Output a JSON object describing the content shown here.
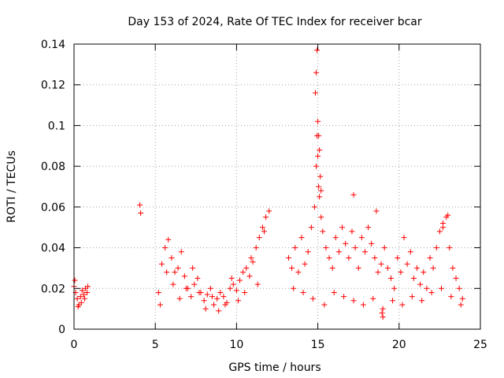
{
  "chart_data": {
    "type": "scatter",
    "title": "Day 153 of 2024, Rate Of TEC Index for receiver bcar",
    "xlabel": "GPS time / hours",
    "ylabel": "ROTI / TECUs",
    "xlim": [
      0,
      25
    ],
    "ylim": [
      0,
      0.14
    ],
    "x_ticks": [
      0,
      5,
      10,
      15,
      20,
      25
    ],
    "x_tick_labels": [
      "0",
      "5",
      "10",
      "15",
      "20",
      "25"
    ],
    "y_ticks": [
      0,
      0.02,
      0.04,
      0.06,
      0.08,
      0.1,
      0.12,
      0.14
    ],
    "y_tick_labels": [
      "0",
      "0.02",
      "0.04",
      "0.06",
      "0.08",
      "0.1",
      "0.12",
      "0.14"
    ],
    "grid": true,
    "marker": "+",
    "color": "#ff0000",
    "series": [
      {
        "name": "ROTI",
        "x": [
          0.0,
          0.1,
          0.2,
          0.3,
          0.4,
          0.5,
          0.6,
          0.7,
          0.8,
          0.85,
          0.05,
          0.25,
          0.45,
          0.65,
          4.05,
          4.1,
          5.2,
          5.4,
          5.6,
          5.8,
          6.0,
          6.2,
          6.4,
          6.6,
          6.8,
          7.0,
          7.2,
          7.4,
          7.6,
          7.8,
          8.0,
          8.2,
          8.4,
          8.6,
          8.8,
          9.0,
          9.2,
          9.4,
          9.6,
          9.8,
          10.0,
          10.2,
          10.4,
          10.6,
          10.8,
          11.0,
          11.2,
          11.4,
          11.6,
          11.8,
          12.0,
          5.3,
          5.7,
          6.1,
          6.5,
          6.9,
          7.3,
          7.7,
          8.1,
          8.5,
          8.9,
          9.3,
          9.7,
          10.1,
          10.5,
          10.9,
          11.3,
          11.7,
          13.2,
          13.4,
          13.6,
          13.8,
          14.0,
          14.2,
          14.4,
          14.6,
          14.8,
          14.9,
          14.95,
          15.0,
          15.05,
          15.1,
          15.2,
          15.3,
          15.5,
          15.7,
          15.9,
          16.1,
          16.3,
          16.5,
          16.7,
          16.9,
          17.1,
          17.3,
          17.5,
          17.7,
          17.9,
          18.1,
          18.3,
          18.5,
          18.7,
          18.9,
          19.1,
          19.3,
          19.5,
          19.7,
          19.9,
          20.1,
          20.3,
          20.5,
          20.7,
          20.9,
          21.1,
          21.3,
          21.5,
          21.7,
          21.9,
          22.1,
          22.3,
          22.5,
          22.7,
          22.9,
          23.1,
          23.3,
          23.5,
          23.7,
          23.9,
          14.85,
          14.9,
          14.95,
          15.0,
          15.05,
          15.1,
          15.15,
          15.2,
          13.5,
          14.1,
          14.7,
          15.4,
          16.0,
          16.6,
          17.2,
          17.8,
          18.4,
          19.0,
          19.6,
          20.2,
          20.8,
          21.4,
          22.0,
          22.6,
          23.2,
          23.8,
          17.2,
          18.6,
          18.95,
          19.0,
          23.0,
          22.7
        ],
        "y": [
          0.021,
          0.018,
          0.015,
          0.012,
          0.016,
          0.019,
          0.017,
          0.02,
          0.018,
          0.021,
          0.024,
          0.011,
          0.013,
          0.015,
          0.061,
          0.057,
          0.018,
          0.032,
          0.04,
          0.044,
          0.035,
          0.028,
          0.03,
          0.038,
          0.026,
          0.02,
          0.016,
          0.022,
          0.025,
          0.018,
          0.014,
          0.017,
          0.02,
          0.012,
          0.015,
          0.018,
          0.016,
          0.013,
          0.02,
          0.022,
          0.019,
          0.024,
          0.028,
          0.03,
          0.026,
          0.033,
          0.04,
          0.045,
          0.05,
          0.055,
          0.058,
          0.012,
          0.028,
          0.022,
          0.015,
          0.02,
          0.03,
          0.018,
          0.01,
          0.016,
          0.009,
          0.012,
          0.025,
          0.014,
          0.018,
          0.035,
          0.022,
          0.048,
          0.035,
          0.03,
          0.04,
          0.028,
          0.045,
          0.032,
          0.038,
          0.05,
          0.06,
          0.08,
          0.095,
          0.085,
          0.07,
          0.065,
          0.055,
          0.048,
          0.04,
          0.035,
          0.03,
          0.045,
          0.038,
          0.05,
          0.042,
          0.035,
          0.048,
          0.04,
          0.03,
          0.045,
          0.038,
          0.05,
          0.042,
          0.035,
          0.028,
          0.032,
          0.04,
          0.03,
          0.025,
          0.02,
          0.035,
          0.028,
          0.045,
          0.032,
          0.038,
          0.025,
          0.03,
          0.022,
          0.028,
          0.02,
          0.035,
          0.03,
          0.04,
          0.048,
          0.052,
          0.055,
          0.04,
          0.03,
          0.025,
          0.02,
          0.015,
          0.116,
          0.126,
          0.137,
          0.102,
          0.095,
          0.088,
          0.075,
          0.068,
          0.02,
          0.018,
          0.015,
          0.012,
          0.018,
          0.016,
          0.014,
          0.012,
          0.015,
          0.01,
          0.014,
          0.012,
          0.016,
          0.014,
          0.018,
          0.02,
          0.016,
          0.012,
          0.066,
          0.058,
          0.008,
          0.006,
          0.056,
          0.05
        ]
      }
    ]
  }
}
